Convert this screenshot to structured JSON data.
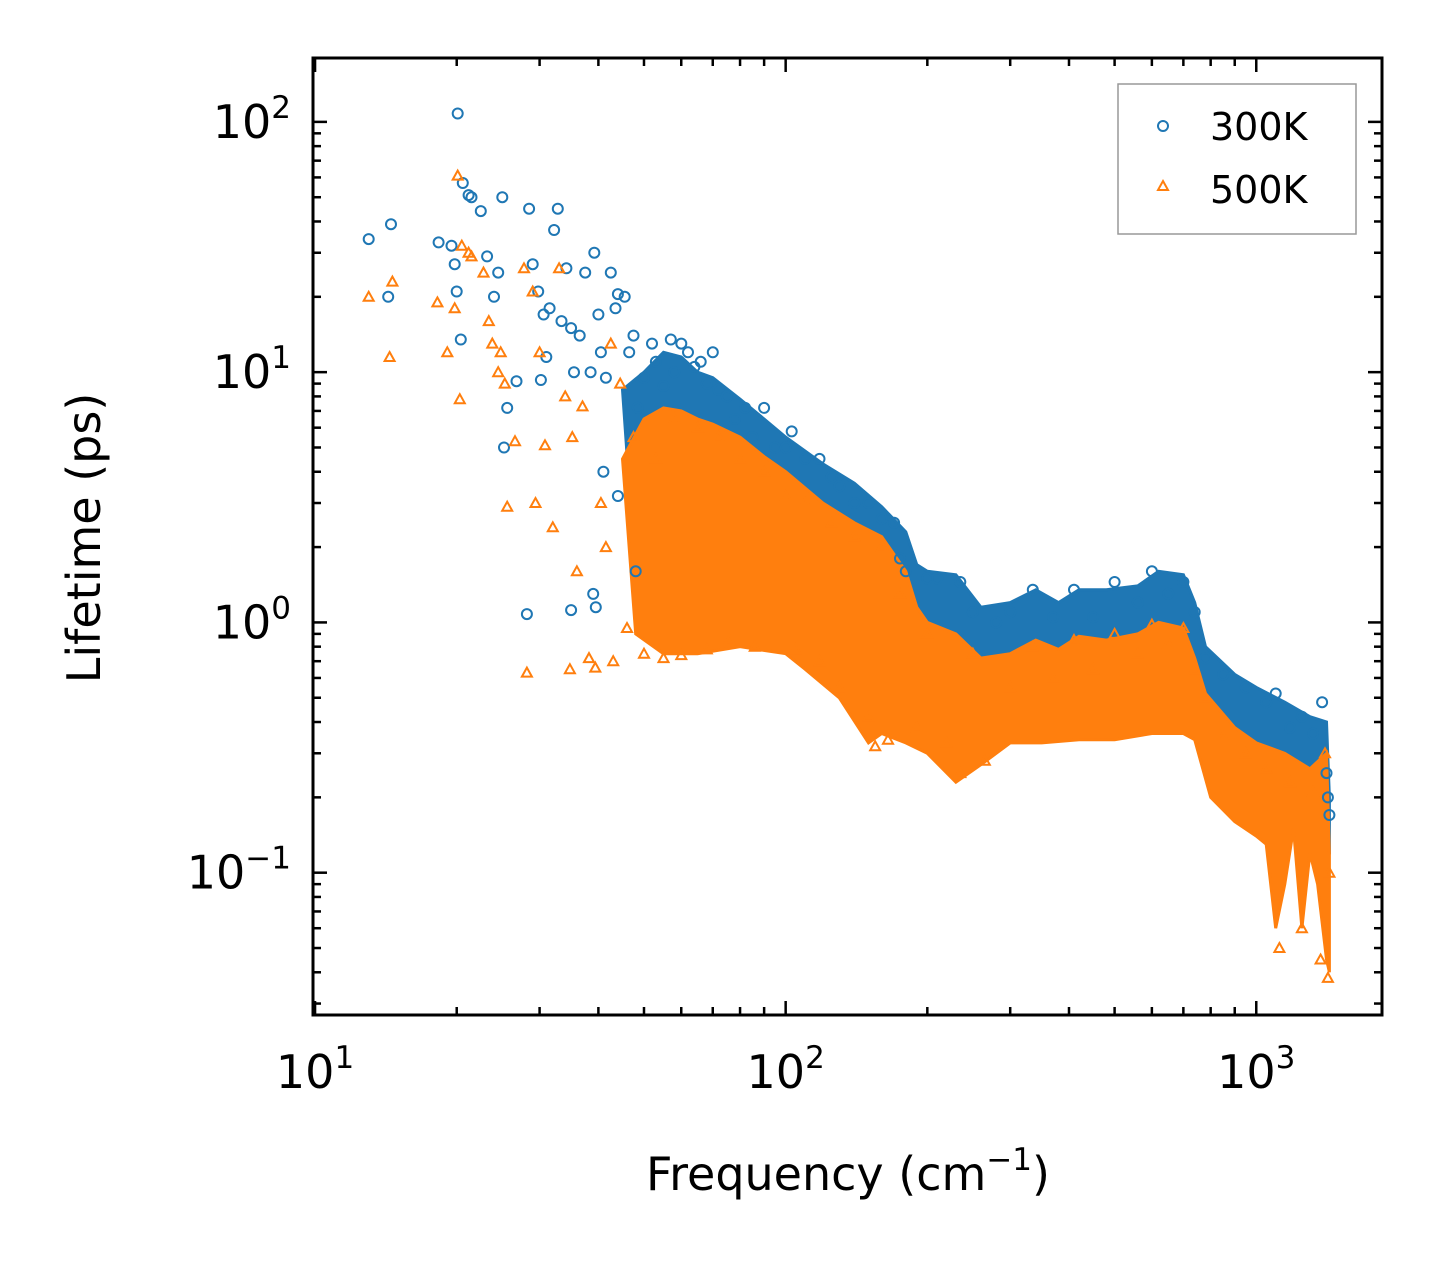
{
  "chart_data": {
    "type": "scatter",
    "xscale": "log",
    "yscale": "log",
    "xlim": [
      9.9,
      1850
    ],
    "ylim": [
      0.027,
      180
    ],
    "xlabel_main": "Frequency (cm",
    "xlabel_sup": "−1",
    "xlabel_end": ")",
    "ylabel": "Lifetime (ps)",
    "x_ticks": [
      {
        "value": 10,
        "base": "10",
        "exp": "1"
      },
      {
        "value": 100,
        "base": "10",
        "exp": "2"
      },
      {
        "value": 1000,
        "base": "10",
        "exp": "3"
      }
    ],
    "y_ticks": [
      {
        "value": 0.1,
        "base": "10",
        "exp": "−1"
      },
      {
        "value": 1,
        "base": "10",
        "exp": "0"
      },
      {
        "value": 10,
        "base": "10",
        "exp": "1"
      },
      {
        "value": 100,
        "base": "10",
        "exp": "2"
      }
    ],
    "legend_position": "top-right",
    "series": [
      {
        "name": "300K",
        "marker": "circle",
        "color": "#1f77b4",
        "points": [
          [
            13.0,
            34
          ],
          [
            14.5,
            39
          ],
          [
            14.3,
            20
          ],
          [
            18.3,
            33
          ],
          [
            19.5,
            32
          ],
          [
            19.8,
            27
          ],
          [
            20.0,
            21
          ],
          [
            20.1,
            108
          ],
          [
            20.4,
            13.5
          ],
          [
            20.6,
            57
          ],
          [
            21.2,
            51
          ],
          [
            21.5,
            50
          ],
          [
            22.5,
            44
          ],
          [
            23.2,
            29
          ],
          [
            24.0,
            20
          ],
          [
            24.5,
            25
          ],
          [
            25.0,
            50
          ],
          [
            25.6,
            7.2
          ],
          [
            25.2,
            5.0
          ],
          [
            26.8,
            9.2
          ],
          [
            28.5,
            45
          ],
          [
            29.0,
            27
          ],
          [
            29.8,
            21
          ],
          [
            30.2,
            9.3
          ],
          [
            30.6,
            17
          ],
          [
            31.0,
            11.5
          ],
          [
            31.5,
            18
          ],
          [
            32.2,
            37
          ],
          [
            32.8,
            45
          ],
          [
            33.4,
            16
          ],
          [
            34.2,
            26
          ],
          [
            35.0,
            15
          ],
          [
            35.5,
            10
          ],
          [
            36.5,
            14
          ],
          [
            37.5,
            25
          ],
          [
            38.5,
            10
          ],
          [
            39.2,
            30
          ],
          [
            40.0,
            17
          ],
          [
            40.5,
            12
          ],
          [
            41.5,
            9.5
          ],
          [
            42.5,
            25
          ],
          [
            43.5,
            18
          ],
          [
            44.0,
            20.5
          ],
          [
            45.5,
            20
          ],
          [
            46.5,
            12
          ],
          [
            47.5,
            14
          ],
          [
            48.5,
            7.2
          ],
          [
            50.0,
            9.5
          ],
          [
            52.0,
            13
          ],
          [
            53.0,
            11
          ],
          [
            55.0,
            8.8
          ],
          [
            57.0,
            13.5
          ],
          [
            58.0,
            10
          ],
          [
            60.0,
            13
          ],
          [
            62.0,
            12
          ],
          [
            64.0,
            10.5
          ],
          [
            66.0,
            11
          ],
          [
            68.0,
            9.0
          ],
          [
            70.0,
            12
          ],
          [
            72.0,
            8.5
          ],
          [
            75.0,
            8.0
          ],
          [
            78.0,
            6.5
          ],
          [
            82.0,
            7.2
          ],
          [
            85.0,
            5.5
          ],
          [
            90.0,
            7.2
          ],
          [
            95.0,
            5.0
          ],
          [
            100.0,
            5.0
          ],
          [
            103.0,
            5.8
          ],
          [
            110.0,
            4.5
          ],
          [
            118.0,
            4.5
          ],
          [
            125.0,
            3.8
          ],
          [
            130.0,
            3.5
          ],
          [
            140.0,
            3.0
          ],
          [
            150.0,
            3.0
          ],
          [
            160.0,
            2.6
          ],
          [
            170.0,
            2.5
          ],
          [
            175.0,
            1.8
          ],
          [
            180.0,
            1.6
          ],
          [
            200.0,
            1.5
          ],
          [
            210.0,
            1.5
          ],
          [
            235.0,
            1.45
          ],
          [
            250.0,
            1.1
          ],
          [
            280.0,
            1.0
          ],
          [
            300.0,
            1.1
          ],
          [
            335.0,
            1.35
          ],
          [
            370.0,
            1.05
          ],
          [
            410.0,
            1.35
          ],
          [
            450.0,
            1.05
          ],
          [
            500.0,
            1.45
          ],
          [
            560.0,
            1.2
          ],
          [
            600.0,
            1.6
          ],
          [
            650.0,
            1.3
          ],
          [
            700.0,
            1.45
          ],
          [
            740.0,
            1.1
          ],
          [
            780.0,
            0.72
          ],
          [
            850.0,
            0.62
          ],
          [
            950.0,
            0.55
          ],
          [
            1050.0,
            0.48
          ],
          [
            1100.0,
            0.52
          ],
          [
            1180.0,
            0.38
          ],
          [
            1250.0,
            0.42
          ],
          [
            1320.0,
            0.36
          ],
          [
            1380.0,
            0.48
          ],
          [
            1410.0,
            0.25
          ],
          [
            1420.0,
            0.2
          ],
          [
            1430.0,
            0.17
          ],
          [
            35.0,
            1.12
          ],
          [
            39.5,
            1.15
          ],
          [
            39.0,
            1.3
          ],
          [
            28.2,
            1.08
          ],
          [
            48.0,
            1.6
          ],
          [
            44.0,
            3.2
          ],
          [
            41.0,
            4.0
          ]
        ]
      },
      {
        "name": "500K",
        "marker": "triangle",
        "color": "#ff7f0e",
        "points": [
          [
            13.0,
            20
          ],
          [
            14.4,
            11.5
          ],
          [
            14.6,
            23
          ],
          [
            18.2,
            19
          ],
          [
            19.1,
            12
          ],
          [
            19.8,
            18
          ],
          [
            20.1,
            61
          ],
          [
            20.3,
            7.8
          ],
          [
            20.5,
            32
          ],
          [
            21.2,
            30
          ],
          [
            21.5,
            29
          ],
          [
            22.8,
            25
          ],
          [
            23.4,
            16
          ],
          [
            23.8,
            13
          ],
          [
            24.5,
            10
          ],
          [
            24.8,
            12
          ],
          [
            25.3,
            9.0
          ],
          [
            25.6,
            2.9
          ],
          [
            26.6,
            5.3
          ],
          [
            27.8,
            26
          ],
          [
            28.2,
            0.63
          ],
          [
            29.0,
            21
          ],
          [
            29.4,
            3.0
          ],
          [
            30.0,
            12
          ],
          [
            30.8,
            5.1
          ],
          [
            32.0,
            2.4
          ],
          [
            33.0,
            26
          ],
          [
            34.0,
            8.0
          ],
          [
            34.8,
            0.65
          ],
          [
            35.2,
            5.5
          ],
          [
            36.0,
            1.6
          ],
          [
            37.0,
            7.3
          ],
          [
            38.2,
            0.72
          ],
          [
            39.4,
            0.66
          ],
          [
            40.5,
            3.0
          ],
          [
            41.5,
            2.0
          ],
          [
            42.5,
            13
          ],
          [
            43.0,
            0.7
          ],
          [
            44.5,
            9.0
          ],
          [
            46.0,
            0.95
          ],
          [
            47.5,
            5.5
          ],
          [
            50.0,
            0.75
          ],
          [
            53.0,
            4.5
          ],
          [
            55.0,
            0.72
          ],
          [
            58.0,
            6.5
          ],
          [
            60.0,
            0.74
          ],
          [
            65.0,
            6.0
          ],
          [
            68.0,
            0.78
          ],
          [
            72.0,
            5.5
          ],
          [
            76.0,
            0.85
          ],
          [
            80.0,
            4.5
          ],
          [
            86.0,
            0.8
          ],
          [
            90.0,
            4.0
          ],
          [
            100.0,
            3.2
          ],
          [
            105.0,
            0.78
          ],
          [
            110.0,
            3.0
          ],
          [
            118.0,
            0.7
          ],
          [
            125.0,
            2.5
          ],
          [
            130.0,
            0.55
          ],
          [
            140.0,
            2.2
          ],
          [
            150.0,
            0.42
          ],
          [
            155.0,
            0.32
          ],
          [
            160.0,
            2.0
          ],
          [
            165.0,
            0.34
          ],
          [
            175.0,
            1.3
          ],
          [
            190.0,
            0.38
          ],
          [
            200.0,
            0.9
          ],
          [
            220.0,
            0.33
          ],
          [
            235.0,
            0.25
          ],
          [
            250.0,
            0.75
          ],
          [
            265.0,
            0.28
          ],
          [
            300.0,
            0.55
          ],
          [
            335.0,
            0.8
          ],
          [
            370.0,
            0.6
          ],
          [
            410.0,
            0.85
          ],
          [
            450.0,
            0.65
          ],
          [
            500.0,
            0.9
          ],
          [
            560.0,
            0.75
          ],
          [
            600.0,
            0.98
          ],
          [
            650.0,
            0.82
          ],
          [
            700.0,
            0.95
          ],
          [
            740.0,
            0.65
          ],
          [
            780.0,
            0.5
          ],
          [
            850.0,
            0.35
          ],
          [
            950.0,
            0.3
          ],
          [
            1050.0,
            0.26
          ],
          [
            1120.0,
            0.05
          ],
          [
            1180.0,
            0.23
          ],
          [
            1250.0,
            0.06
          ],
          [
            1320.0,
            0.21
          ],
          [
            1370.0,
            0.045
          ],
          [
            1400.0,
            0.3
          ],
          [
            1420.0,
            0.038
          ],
          [
            1430.0,
            0.1
          ]
        ]
      }
    ]
  }
}
